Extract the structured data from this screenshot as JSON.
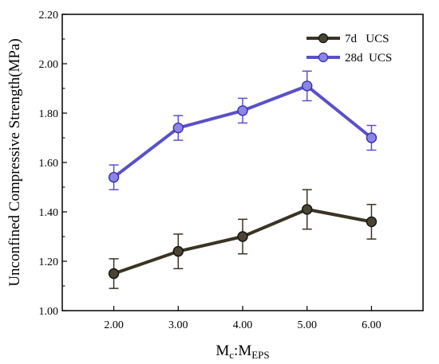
{
  "chart_data": {
    "type": "line",
    "x": [
      2.0,
      3.0,
      4.0,
      5.0,
      6.0
    ],
    "x_tick_labels": [
      "2.00",
      "3.00",
      "4.00",
      "5.00",
      "6.00"
    ],
    "y_tick_labels": [
      "1.00",
      "1.20",
      "1.40",
      "1.60",
      "1.80",
      "2.00",
      "2.20"
    ],
    "xlabel": {
      "main": "M",
      "sub1": "c",
      "sep": ":M",
      "sub2": "EPS"
    },
    "ylabel": "Unconfined Compressive Strength(MPa)",
    "xlim": [
      1.2,
      6.8
    ],
    "ylim": [
      1.0,
      2.2
    ],
    "grid": false,
    "legend_position": "top-right",
    "series": [
      {
        "name": "7d   UCS",
        "values": [
          1.15,
          1.24,
          1.3,
          1.41,
          1.36
        ],
        "errors": [
          0.06,
          0.07,
          0.07,
          0.08,
          0.07
        ],
        "line_color": "#3a3424",
        "marker_color": "#4a4434"
      },
      {
        "name": "28d  UCS",
        "values": [
          1.54,
          1.74,
          1.81,
          1.91,
          1.7
        ],
        "errors": [
          0.05,
          0.05,
          0.05,
          0.06,
          0.05
        ],
        "line_color": "#5a50c8",
        "marker_color": "#8c84e6"
      }
    ]
  }
}
